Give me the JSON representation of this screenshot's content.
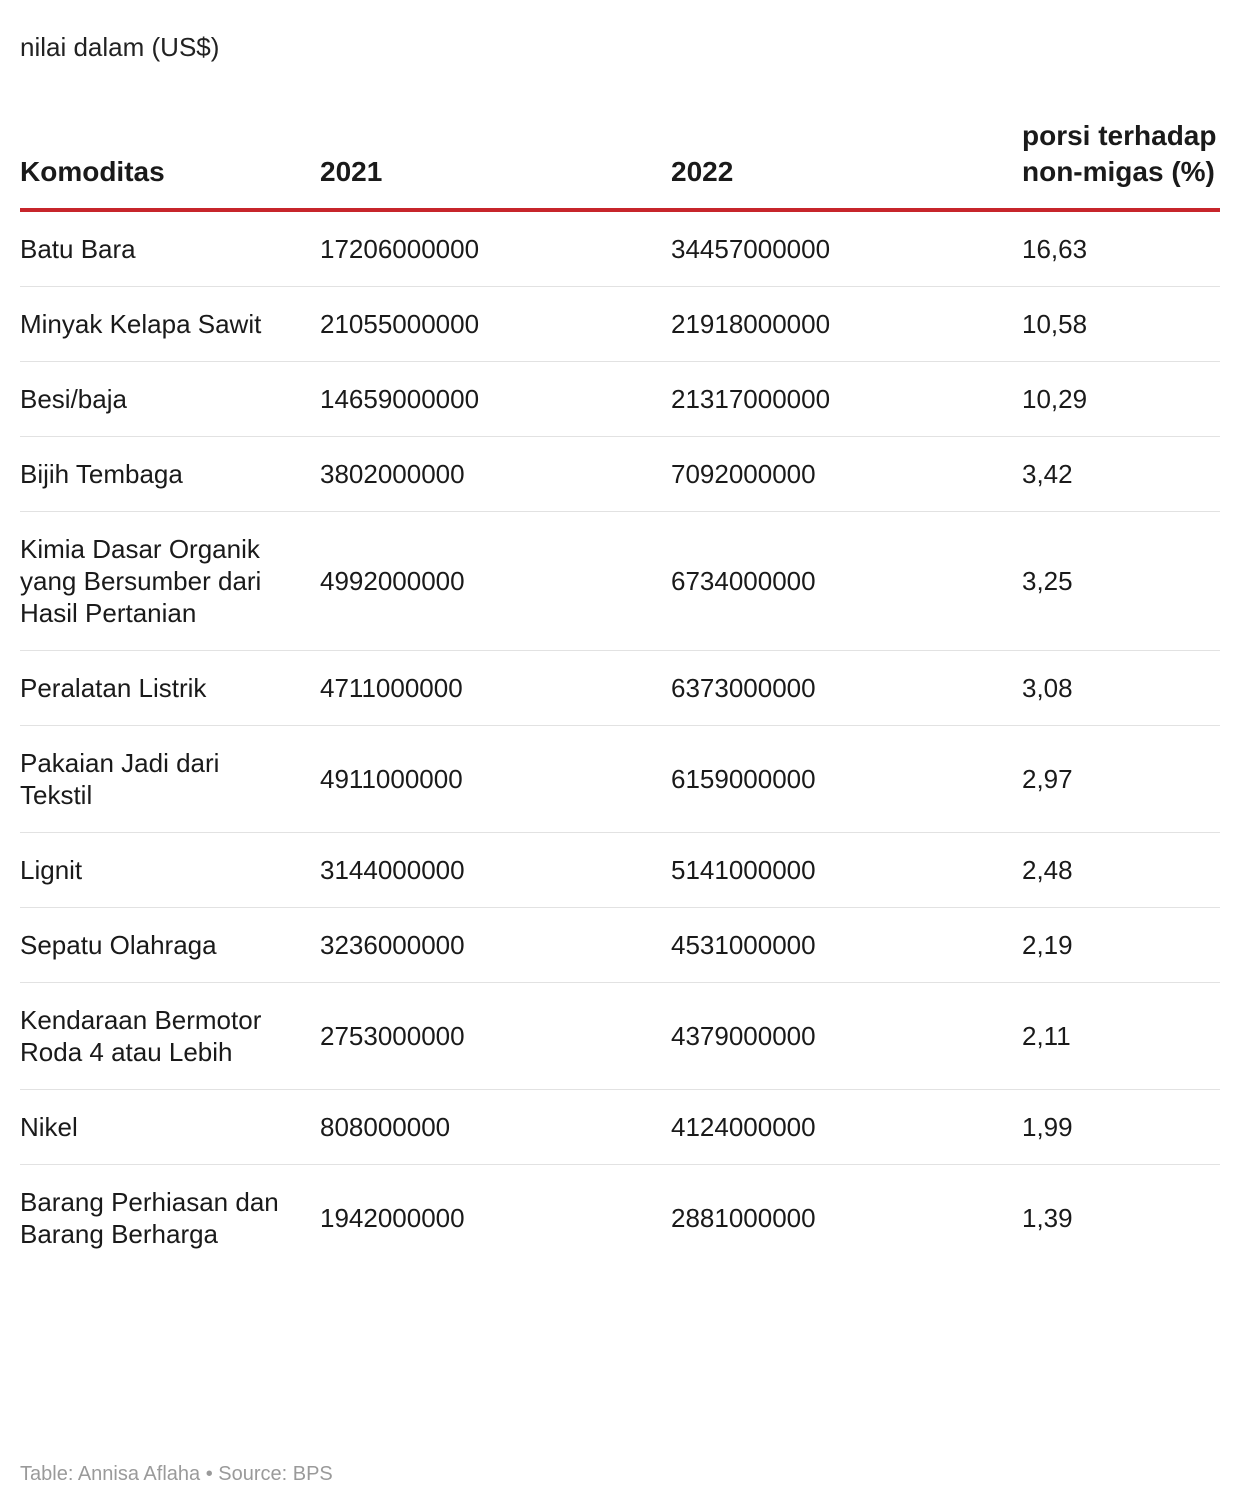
{
  "subtitle": "nilai dalam (US$)",
  "footer": "Table: Annisa Aflaha • Source: BPS",
  "colors": {
    "header_rule": "#c7252b",
    "row_rule": "#e2e2e2",
    "footer_text": "#9a9a9a"
  },
  "chart_data": {
    "type": "table",
    "columns": [
      "Komoditas",
      "2021",
      "2022",
      "porsi terhadap non-migas (%)"
    ],
    "rows": [
      [
        "Batu Bara",
        "17206000000",
        "34457000000",
        "16,63"
      ],
      [
        "Minyak Kelapa Sawit",
        "21055000000",
        "21918000000",
        "10,58"
      ],
      [
        "Besi/baja",
        "14659000000",
        "21317000000",
        "10,29"
      ],
      [
        "Bijih Tembaga",
        "3802000000",
        "7092000000",
        "3,42"
      ],
      [
        "Kimia Dasar Organik yang Bersumber dari Hasil Pertanian",
        "4992000000",
        "6734000000",
        "3,25"
      ],
      [
        "Peralatan Listrik",
        "4711000000",
        "6373000000",
        "3,08"
      ],
      [
        "Pakaian Jadi dari Tekstil",
        "4911000000",
        "6159000000",
        "2,97"
      ],
      [
        "Lignit",
        "3144000000",
        "5141000000",
        "2,48"
      ],
      [
        "Sepatu Olahraga",
        "3236000000",
        "4531000000",
        "2,19"
      ],
      [
        "Kendaraan Bermotor Roda 4 atau Lebih",
        "2753000000",
        "4379000000",
        "2,11"
      ],
      [
        "Nikel",
        "808000000",
        "4124000000",
        "1,99"
      ],
      [
        "Barang Perhiasan dan Barang Berharga",
        "1942000000",
        "2881000000",
        "1,39"
      ]
    ]
  }
}
